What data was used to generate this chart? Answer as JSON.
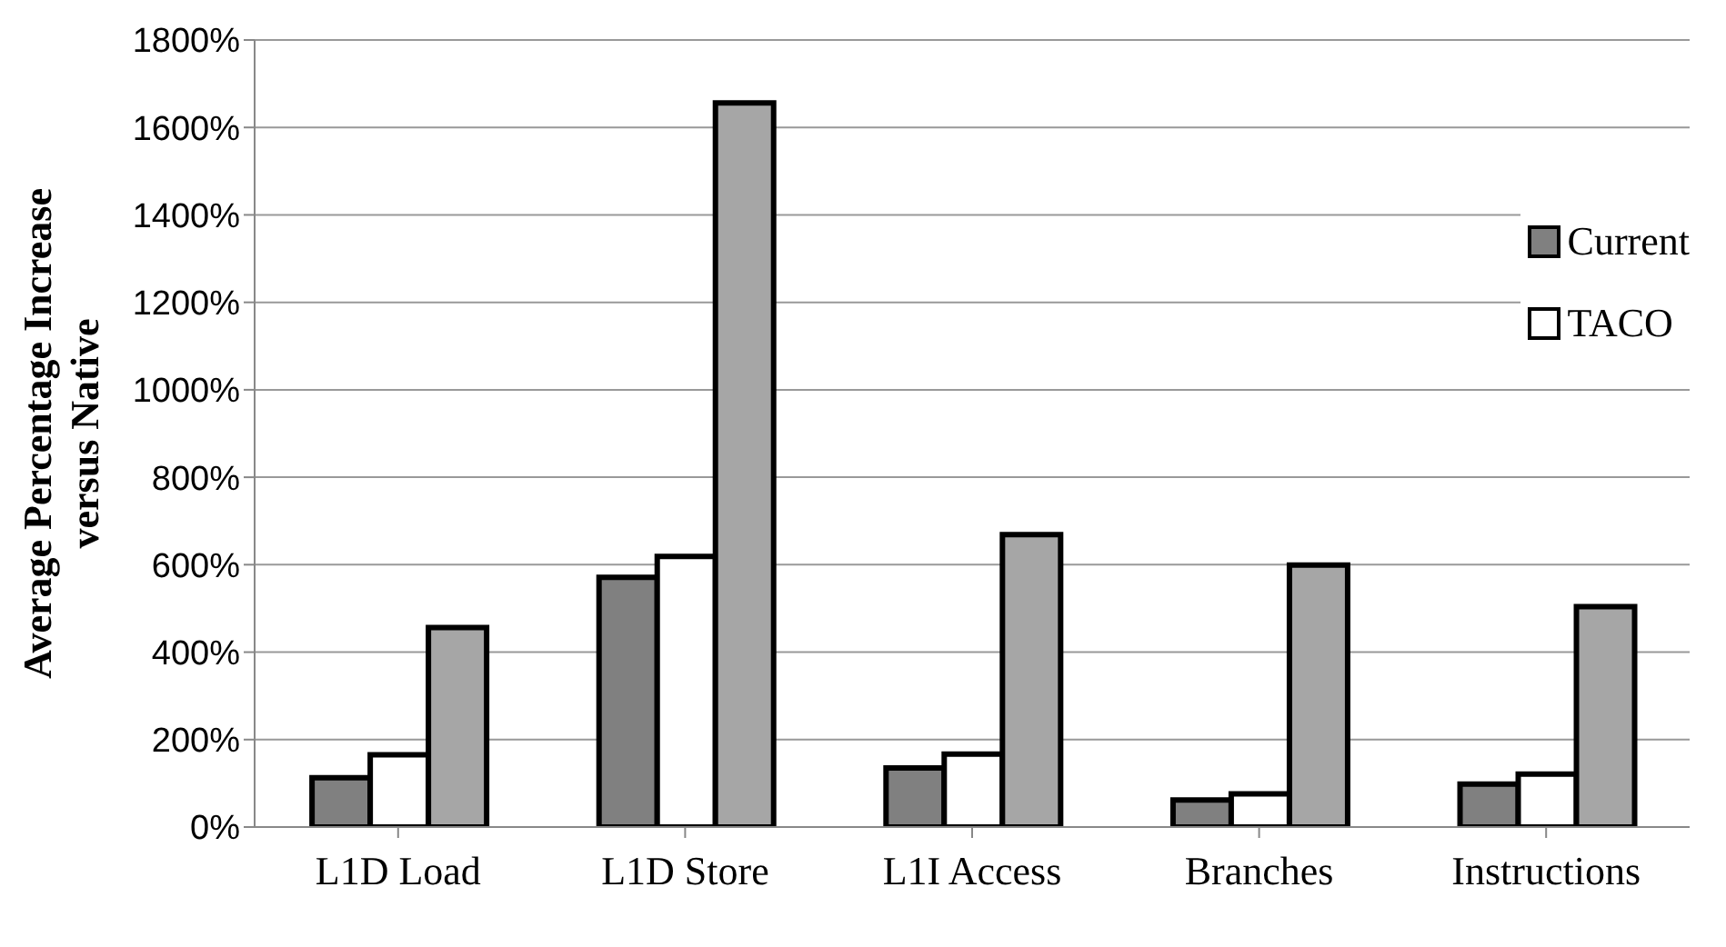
{
  "chart_data": {
    "type": "bar",
    "ylabel": "Average Percentage Increase versus Native",
    "categories": [
      "L1D Load",
      "L1D Store",
      "L1I Access",
      "Branches",
      "Instructions"
    ],
    "series": [
      {
        "name": "Current",
        "color": "#808080",
        "values": [
          113,
          571,
          135,
          62,
          98
        ]
      },
      {
        "name": "TACO",
        "color": "#ffffff",
        "values": [
          165,
          619,
          167,
          76,
          121
        ]
      },
      {
        "color": "#a6a6a6",
        "values": [
          456,
          1656,
          669,
          599,
          504
        ]
      }
    ],
    "ylim": [
      0,
      1800
    ],
    "yticks": [
      {
        "value": 0,
        "label": "0%"
      },
      {
        "value": 200,
        "label": "200%"
      },
      {
        "value": 400,
        "label": "400%"
      },
      {
        "value": 600,
        "label": "600%"
      },
      {
        "value": 800,
        "label": "800%"
      },
      {
        "value": 1000,
        "label": "1000%"
      },
      {
        "value": 1200,
        "label": "1200%"
      },
      {
        "value": 1400,
        "label": "1400%"
      },
      {
        "value": 1600,
        "label": "1600%"
      },
      {
        "value": 1800,
        "label": "1800%"
      }
    ],
    "grid": "y",
    "legend": "right"
  }
}
